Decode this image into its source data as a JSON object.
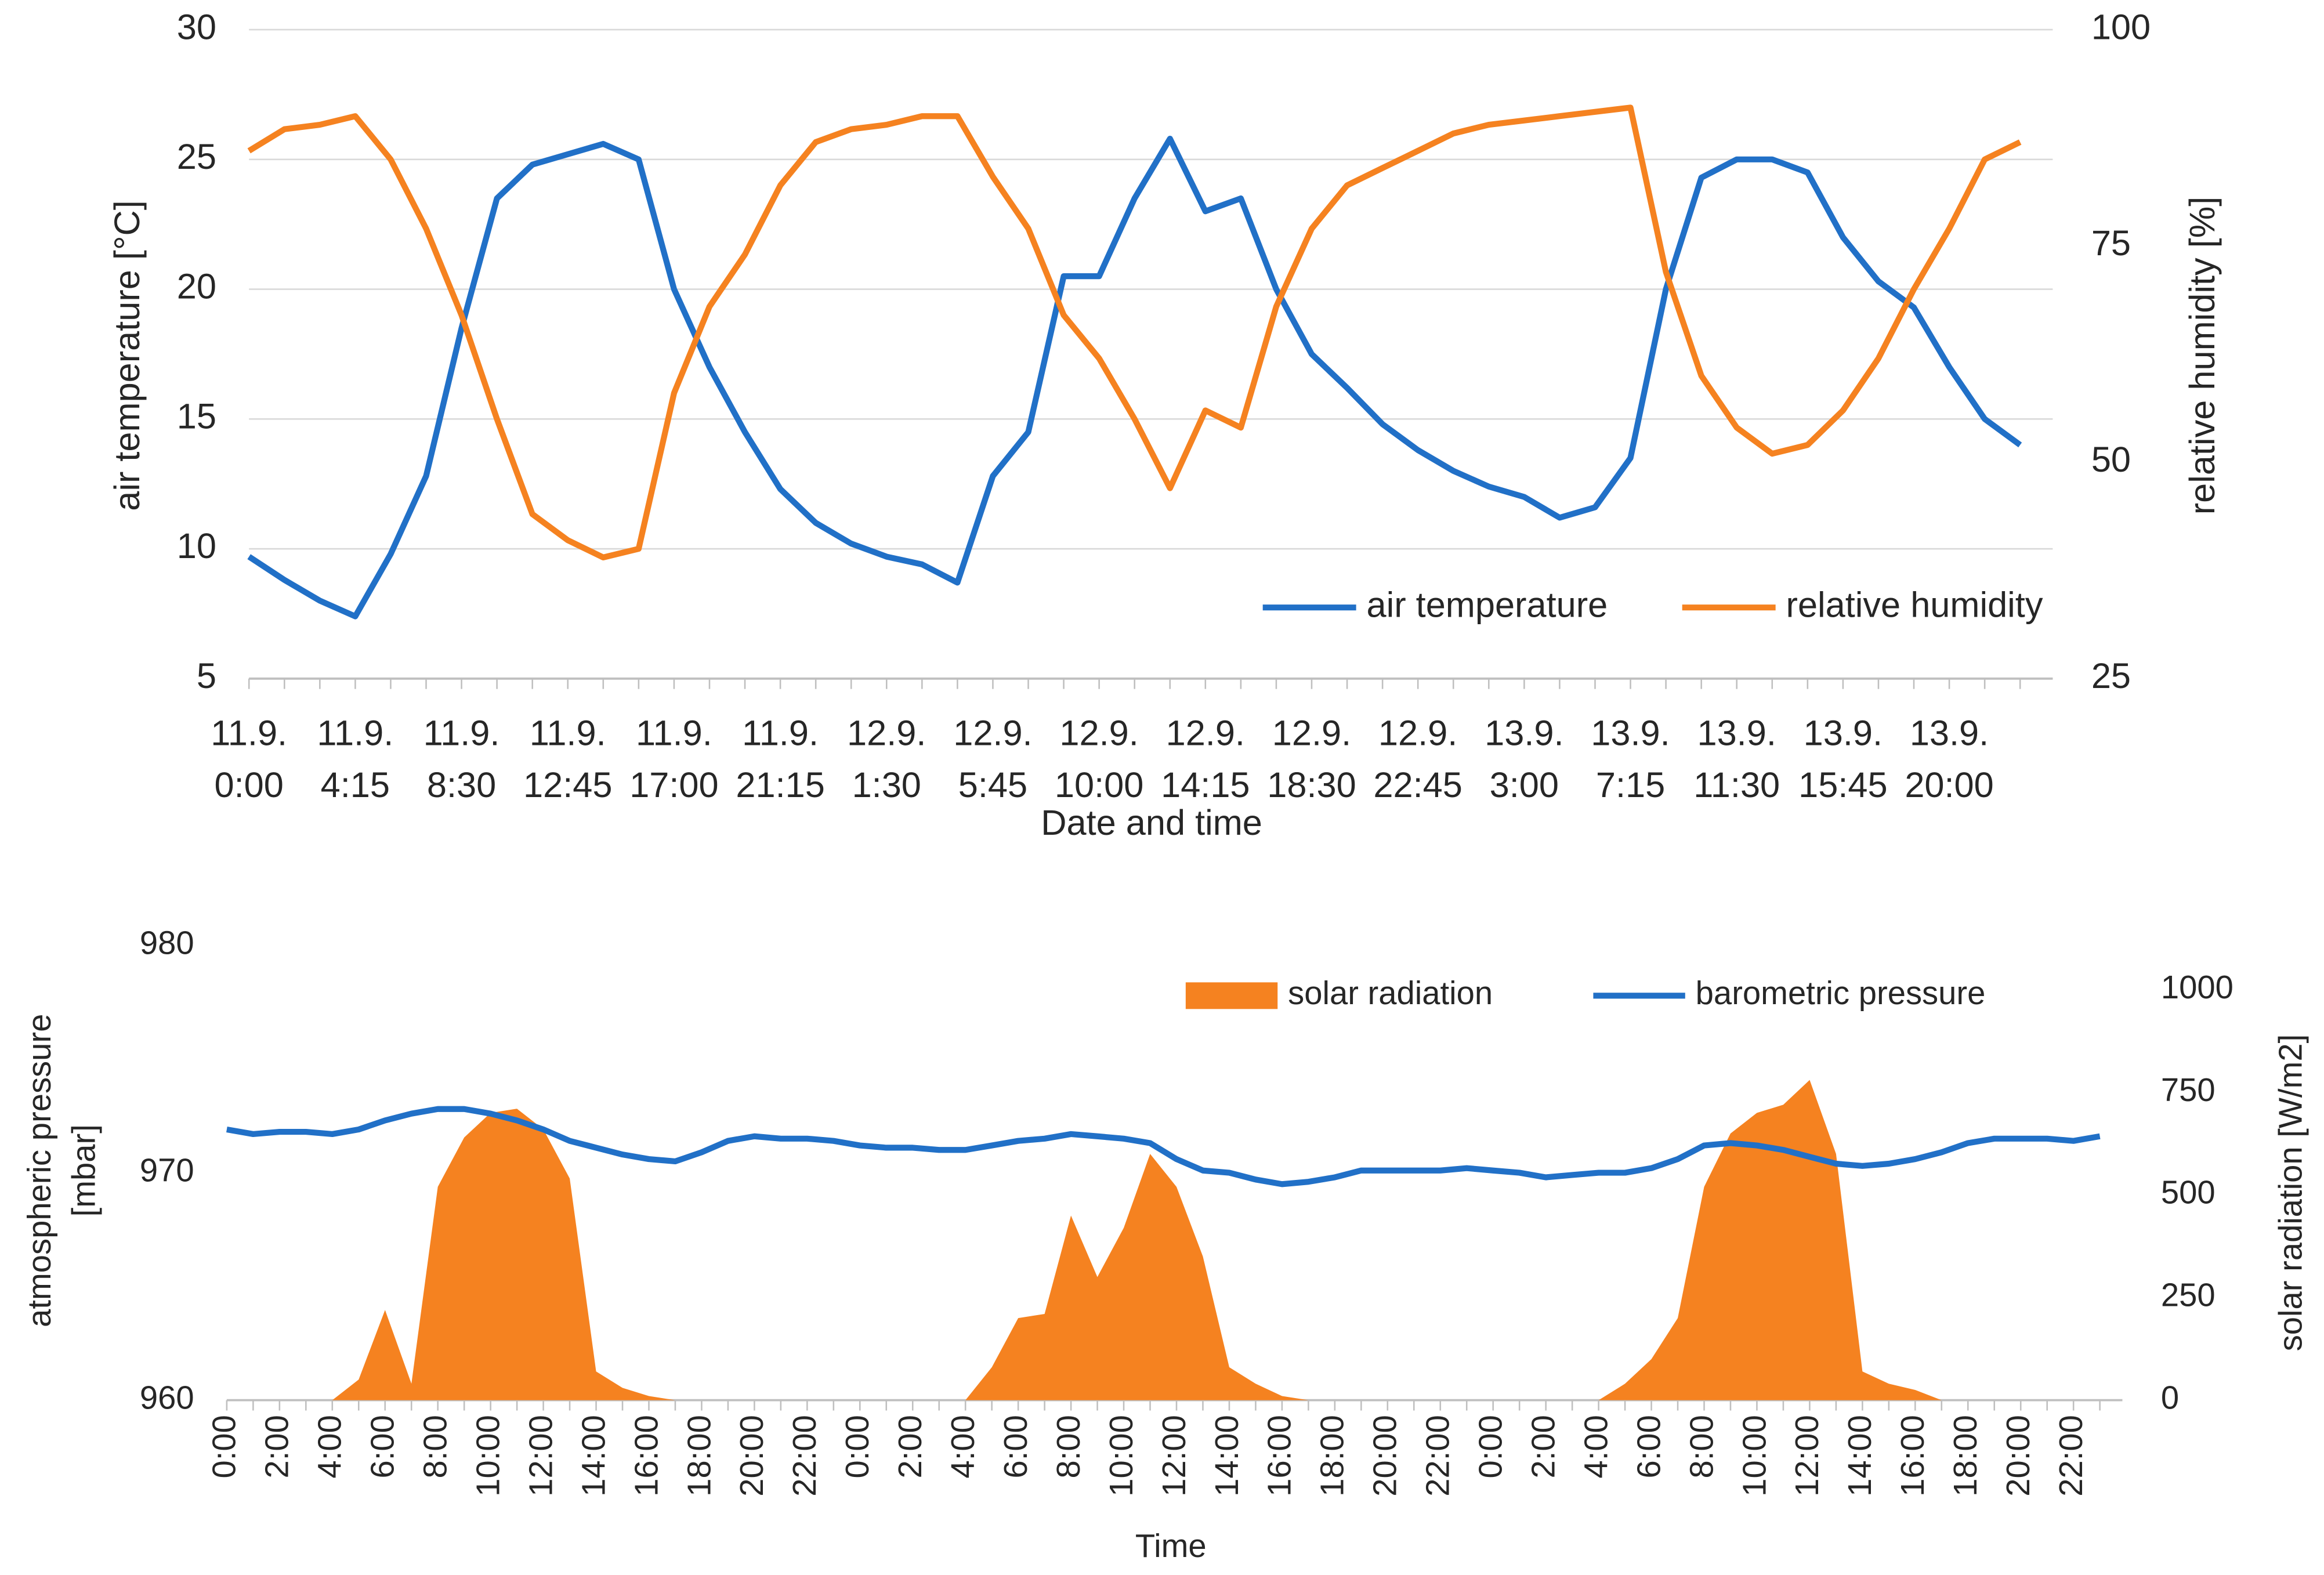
{
  "chart_data": [
    {
      "type": "line",
      "xlabel": "Date and time",
      "ylabel": "air temperature [°C]",
      "y2label": "relative humidity [%]",
      "categories": [
        "11.9. 0:00",
        null,
        null,
        "11.9. 4:15",
        null,
        null,
        "11.9. 8:30",
        null,
        null,
        "11.9. 12:45",
        null,
        null,
        "11.9. 17:00",
        null,
        null,
        "11.9. 21:15",
        null,
        null,
        "12.9. 1:30",
        null,
        null,
        "12.9. 5:45",
        null,
        null,
        "12.9. 10:00",
        null,
        null,
        "12.9. 14:15",
        null,
        null,
        "12.9. 18:30",
        null,
        null,
        "12.9. 22:45",
        null,
        null,
        "13.9. 3:00",
        null,
        null,
        "13.9. 7:15",
        null,
        null,
        "13.9. 11:30",
        null,
        null,
        "13.9. 15:45",
        null,
        null,
        "13.9. 20:00",
        null,
        null
      ],
      "series": [
        {
          "name": "air temperature",
          "color": "#2170c7",
          "values": [
            9.7,
            8.8,
            8.0,
            7.4,
            9.8,
            12.8,
            18.5,
            23.5,
            24.8,
            25.2,
            25.6,
            25.0,
            20.0,
            17.0,
            14.5,
            12.3,
            11.0,
            10.2,
            9.7,
            9.4,
            8.7,
            12.8,
            14.5,
            20.5,
            20.5,
            23.5,
            25.8,
            23.0,
            23.5,
            20.0,
            17.5,
            16.2,
            14.8,
            13.8,
            13.0,
            12.4,
            12.0,
            11.2,
            11.6,
            13.5,
            20.0,
            24.3,
            25.0,
            25.0,
            24.5,
            22.0,
            20.3,
            19.3,
            17.0,
            15.0,
            14.0
          ]
        },
        {
          "name": "relative humidity",
          "color": "#f58220",
          "axis": "y2",
          "values": [
            86,
            88.5,
            89,
            90,
            85,
            77,
            67,
            55,
            44,
            41,
            39,
            40,
            58,
            68,
            74,
            82,
            87,
            88.5,
            89,
            90,
            90,
            83,
            77,
            67,
            62,
            55,
            47,
            56,
            54,
            68,
            77,
            82,
            84,
            86,
            88,
            89,
            89.5,
            90,
            90.5,
            91,
            72,
            60,
            54,
            51,
            52,
            56,
            62,
            70,
            77,
            85,
            87
          ]
        }
      ],
      "ylim": [
        5,
        30
      ],
      "yticks": [
        5,
        10,
        15,
        20,
        25,
        30
      ],
      "y2lim": [
        25,
        100
      ],
      "y2ticks": [
        25,
        50,
        75,
        100
      ],
      "grid": true,
      "legend": "lower right"
    },
    {
      "type": "line",
      "xlabel": "Time",
      "ylabel": "atmospheric pressure [mbar]",
      "y2label": "solar radiation [W/m2]",
      "categories": [
        "0:00",
        null,
        "2:00",
        null,
        "4:00",
        null,
        "6:00",
        null,
        "8:00",
        null,
        "10:00",
        null,
        "12:00",
        null,
        "14:00",
        null,
        "16:00",
        null,
        "18:00",
        null,
        "20:00",
        null,
        "22:00",
        null,
        "0:00",
        null,
        "2:00",
        null,
        "4:00",
        null,
        "6:00",
        null,
        "8:00",
        null,
        "10:00",
        null,
        "12:00",
        null,
        "14:00",
        null,
        "16:00",
        null,
        "18:00",
        null,
        "20:00",
        null,
        "22:00",
        null,
        "0:00",
        null,
        "2:00",
        null,
        "4:00",
        null,
        "6:00",
        null,
        "8:00",
        null,
        "10:00",
        null,
        "12:00",
        null,
        "14:00",
        null,
        "16:00",
        null,
        "18:00",
        null,
        "20:00",
        null,
        "22:00",
        null
      ],
      "series": [
        {
          "name": "solar radiation",
          "color": "#f58220",
          "type": "area",
          "axis": "y2",
          "values": [
            0,
            0,
            0,
            0,
            0,
            50,
            220,
            40,
            520,
            640,
            700,
            710,
            660,
            540,
            70,
            30,
            10,
            0,
            0,
            0,
            0,
            0,
            0,
            0,
            0,
            0,
            0,
            0,
            0,
            80,
            200,
            210,
            450,
            300,
            420,
            600,
            520,
            350,
            80,
            40,
            10,
            0,
            0,
            0,
            0,
            0,
            0,
            0,
            0,
            0,
            0,
            0,
            0,
            40,
            100,
            200,
            520,
            650,
            700,
            720,
            780,
            600,
            70,
            40,
            25,
            0,
            0,
            0,
            0,
            0,
            0,
            0
          ]
        },
        {
          "name": "barometric pressure",
          "color": "#2170c7",
          "values": [
            971.9,
            971.7,
            971.8,
            971.8,
            971.7,
            971.9,
            972.3,
            972.6,
            972.8,
            972.8,
            972.6,
            972.3,
            971.9,
            971.4,
            971.1,
            970.8,
            970.6,
            970.5,
            970.9,
            971.4,
            971.6,
            971.5,
            971.5,
            971.4,
            971.2,
            971.1,
            971.1,
            971.0,
            971.0,
            971.2,
            971.4,
            971.5,
            971.7,
            971.6,
            971.5,
            971.3,
            970.6,
            970.1,
            970.0,
            969.7,
            969.5,
            969.6,
            969.8,
            970.1,
            970.1,
            970.1,
            970.1,
            970.2,
            970.1,
            970.0,
            969.8,
            969.9,
            970.0,
            970.0,
            970.2,
            970.6,
            971.2,
            971.3,
            971.2,
            971.0,
            970.7,
            970.4,
            970.3,
            970.4,
            970.6,
            970.9,
            971.3,
            971.5,
            971.5,
            971.5,
            971.4,
            971.6
          ]
        }
      ],
      "ylim": [
        960,
        980
      ],
      "yticks": [
        960,
        970,
        980
      ],
      "y2lim": [
        0,
        1000
      ],
      "y2ticks": [
        0,
        250,
        500,
        750,
        1000
      ],
      "grid": false,
      "legend": "upper right"
    }
  ]
}
